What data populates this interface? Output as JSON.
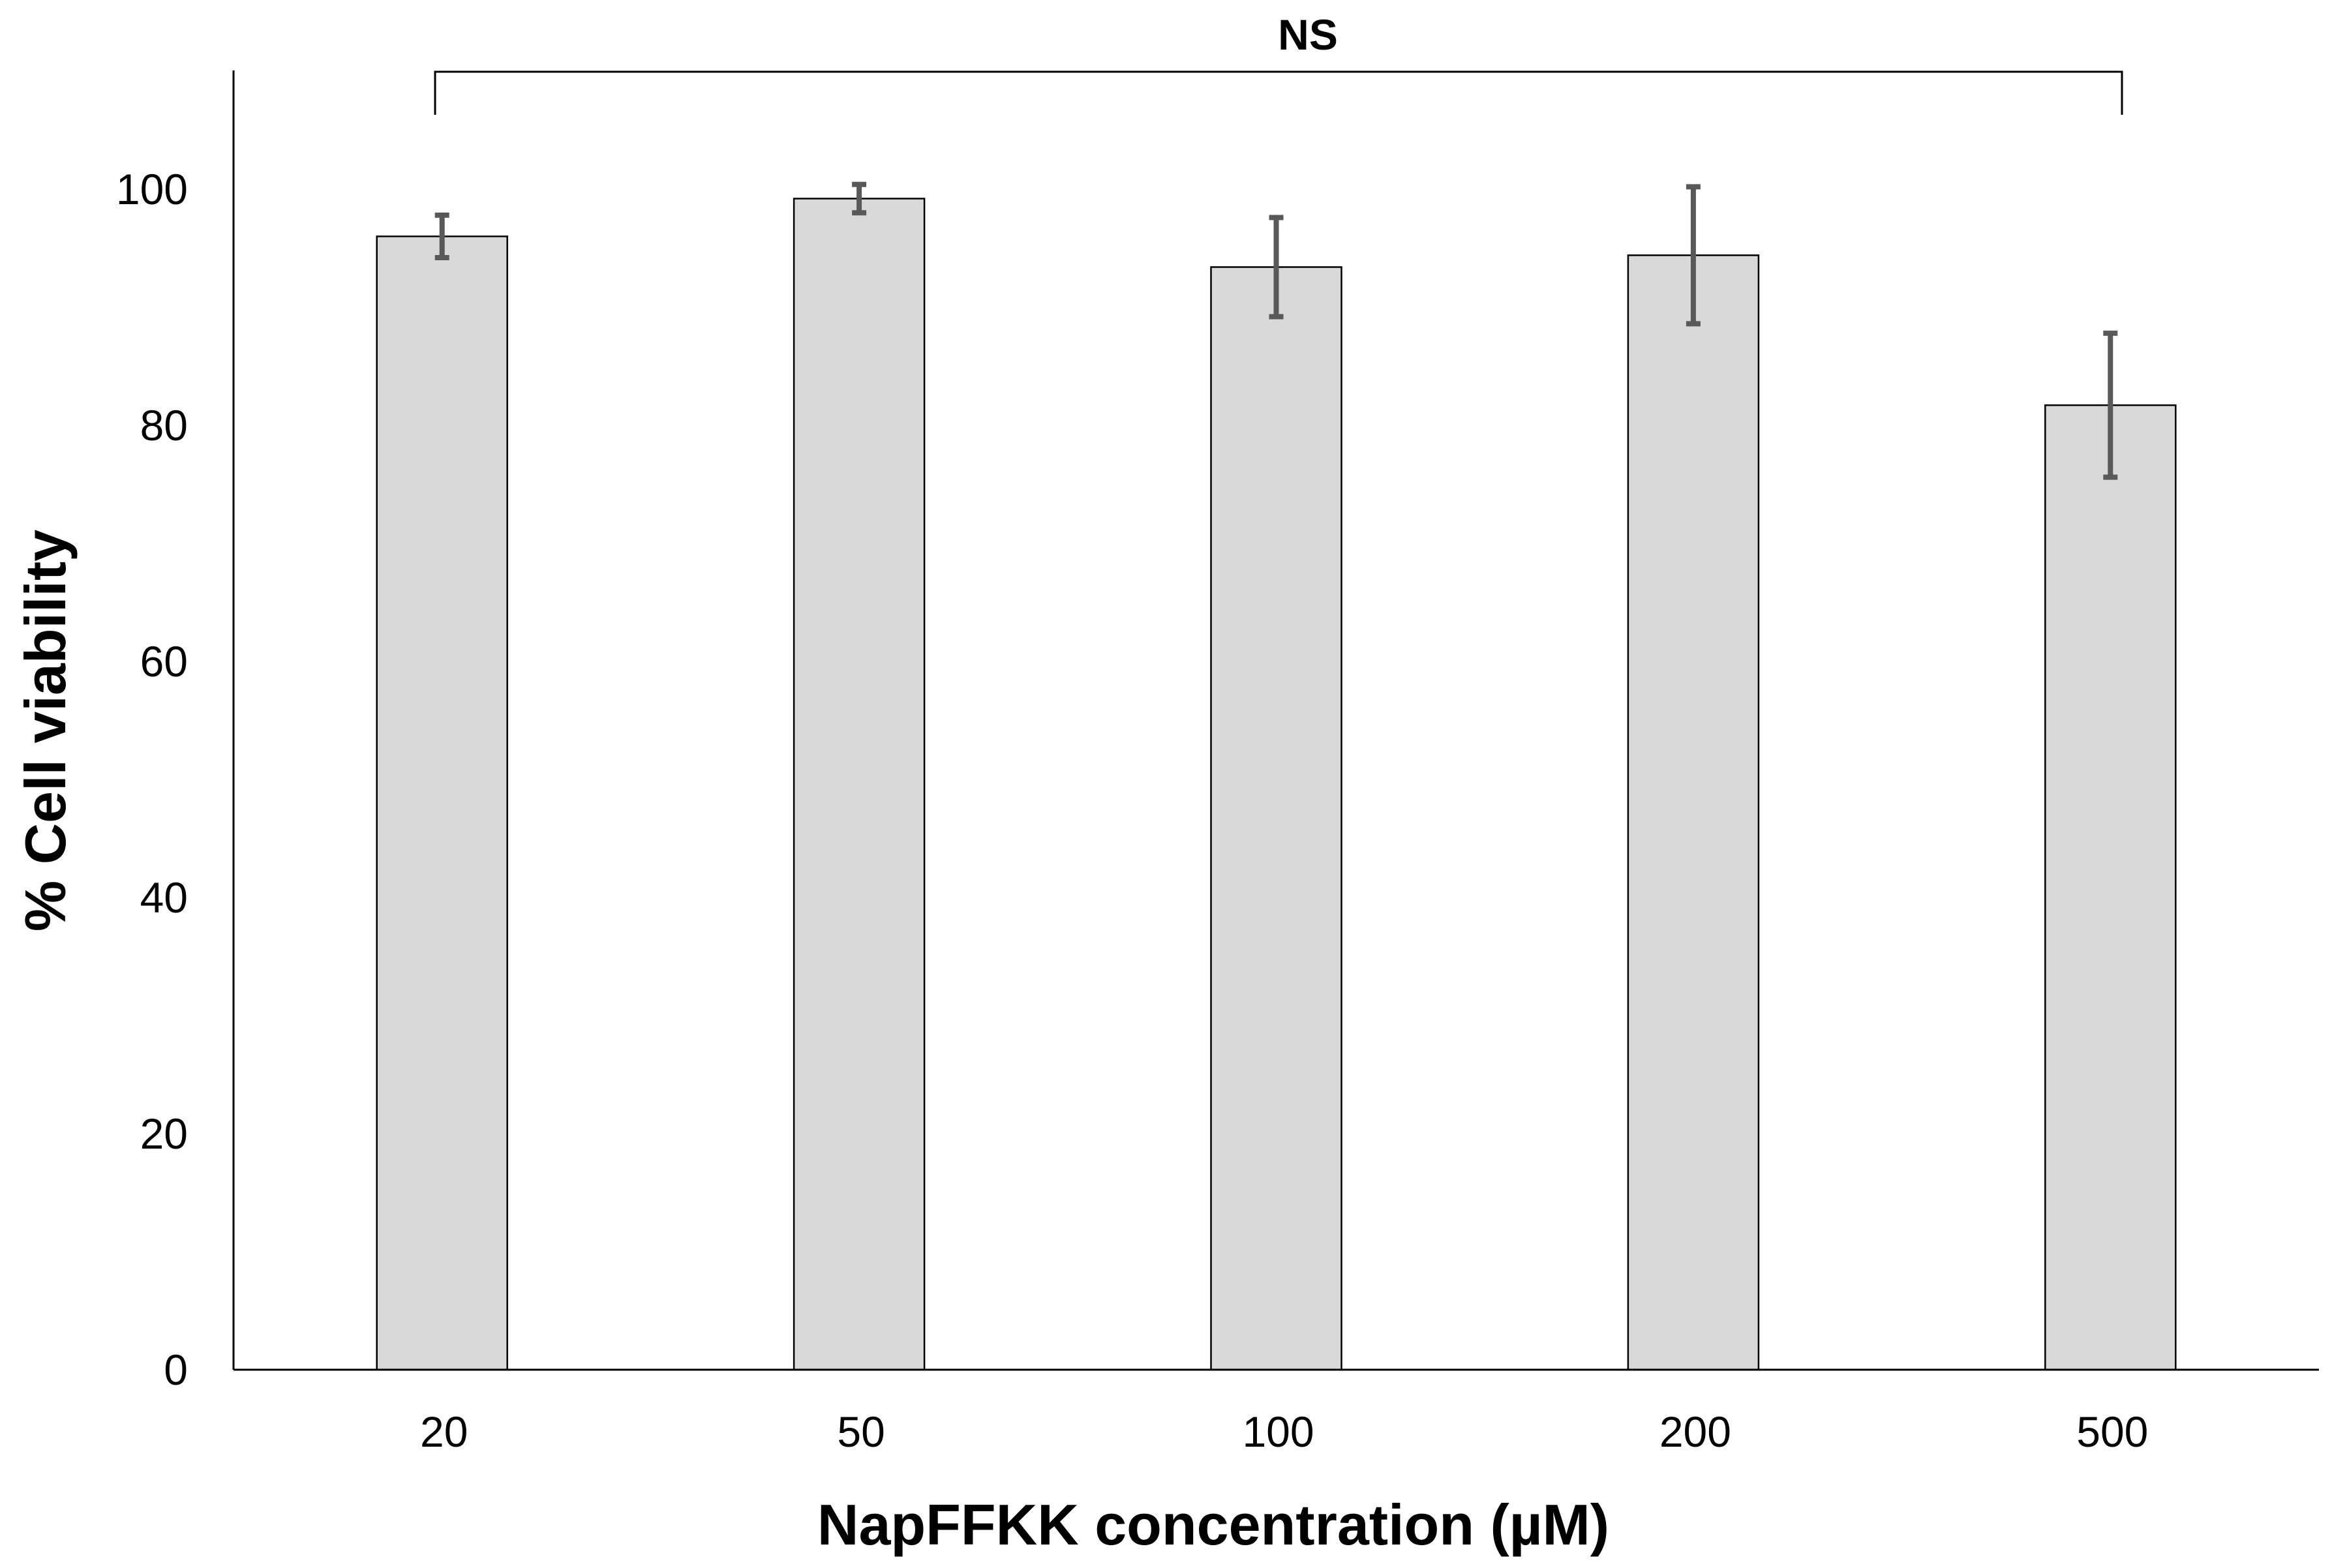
{
  "chart_data": {
    "type": "bar",
    "xlabel": "NapFFKK concentration (µM)",
    "ylabel": "% Cell viability",
    "categories": [
      "20",
      "50",
      "100",
      "200",
      "500"
    ],
    "values": [
      96,
      99.2,
      93.4,
      94.4,
      81.7
    ],
    "errors": [
      1.8,
      1.2,
      4.2,
      5.8,
      6.1
    ],
    "ylim": [
      0,
      100
    ],
    "yticks": [
      "0",
      "20",
      "40",
      "60",
      "80",
      "100"
    ],
    "grid": false,
    "legend": "none",
    "annotation": {
      "text": "NS",
      "from_category": "20",
      "to_category": "500"
    },
    "colors": {
      "bar_fill": "#d9d9d9",
      "bar_stroke": "#000000",
      "error_bar": "#595959",
      "axis": "#000000"
    }
  }
}
